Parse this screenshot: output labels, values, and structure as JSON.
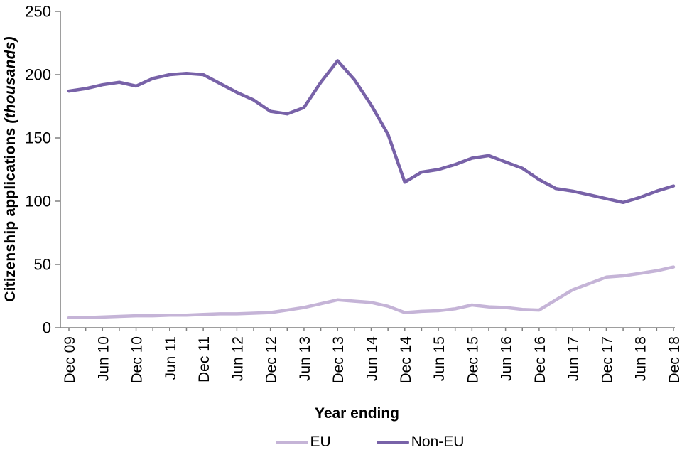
{
  "chart_data": {
    "type": "line",
    "title": "",
    "xlabel": "Year ending",
    "ylabel": "Citizenship applications (thousands)",
    "ylabel_main": "Citizenship applications",
    "ylabel_unit": "(thousands)",
    "ylim": [
      0,
      250
    ],
    "yticks": [
      0,
      50,
      100,
      150,
      200,
      250
    ],
    "grid": false,
    "legend_position": "bottom",
    "x_label_every": 2,
    "x": [
      "Dec 09",
      "Mar 10",
      "Jun 10",
      "Sep 10",
      "Dec 10",
      "Mar 11",
      "Jun 11",
      "Sep 11",
      "Dec 11",
      "Mar 12",
      "Jun 12",
      "Sep 12",
      "Dec 12",
      "Mar 13",
      "Jun 13",
      "Sep 13",
      "Dec 13",
      "Mar 14",
      "Jun 14",
      "Sep 14",
      "Dec 14",
      "Mar 15",
      "Jun 15",
      "Sep 15",
      "Dec 15",
      "Mar 16",
      "Jun 16",
      "Sep 16",
      "Dec 16",
      "Mar 17",
      "Jun 17",
      "Sep 17",
      "Dec 17",
      "Mar 18",
      "Jun 18",
      "Sep 18",
      "Dec 18"
    ],
    "x_shown_labels": [
      "Dec 09",
      "Jun 10",
      "Dec 10",
      "Jun 11",
      "Dec 11",
      "Jun 12",
      "Dec 12",
      "Jun 13",
      "Dec 13",
      "Jun 14",
      "Dec 14",
      "Jun 15",
      "Dec 15",
      "Jun 16",
      "Dec 16",
      "Jun 17",
      "Dec 17",
      "Jun 18",
      "Dec 18"
    ],
    "series": [
      {
        "name": "EU",
        "color": "#C5B4D7",
        "values": [
          8,
          8,
          8.5,
          9,
          9.5,
          9.5,
          10,
          10,
          10.5,
          11,
          11,
          11.5,
          12,
          14,
          16,
          19,
          22,
          21,
          20,
          17,
          12,
          13,
          13.5,
          15,
          18,
          16.5,
          16,
          14.5,
          14,
          22,
          30,
          35,
          40,
          41,
          43,
          45,
          48
        ]
      },
      {
        "name": "Non-EU",
        "color": "#7862A8",
        "values": [
          187,
          189,
          192,
          194,
          191,
          197,
          200,
          201,
          200,
          193,
          186,
          180,
          171,
          169,
          174,
          194,
          211,
          196,
          176,
          153,
          115,
          123,
          125,
          129,
          134,
          136,
          131,
          126,
          117,
          110,
          108,
          105,
          102,
          99,
          103,
          108,
          112
        ]
      }
    ],
    "axis_color": "#7f7f7f",
    "text_color": "#000000"
  }
}
